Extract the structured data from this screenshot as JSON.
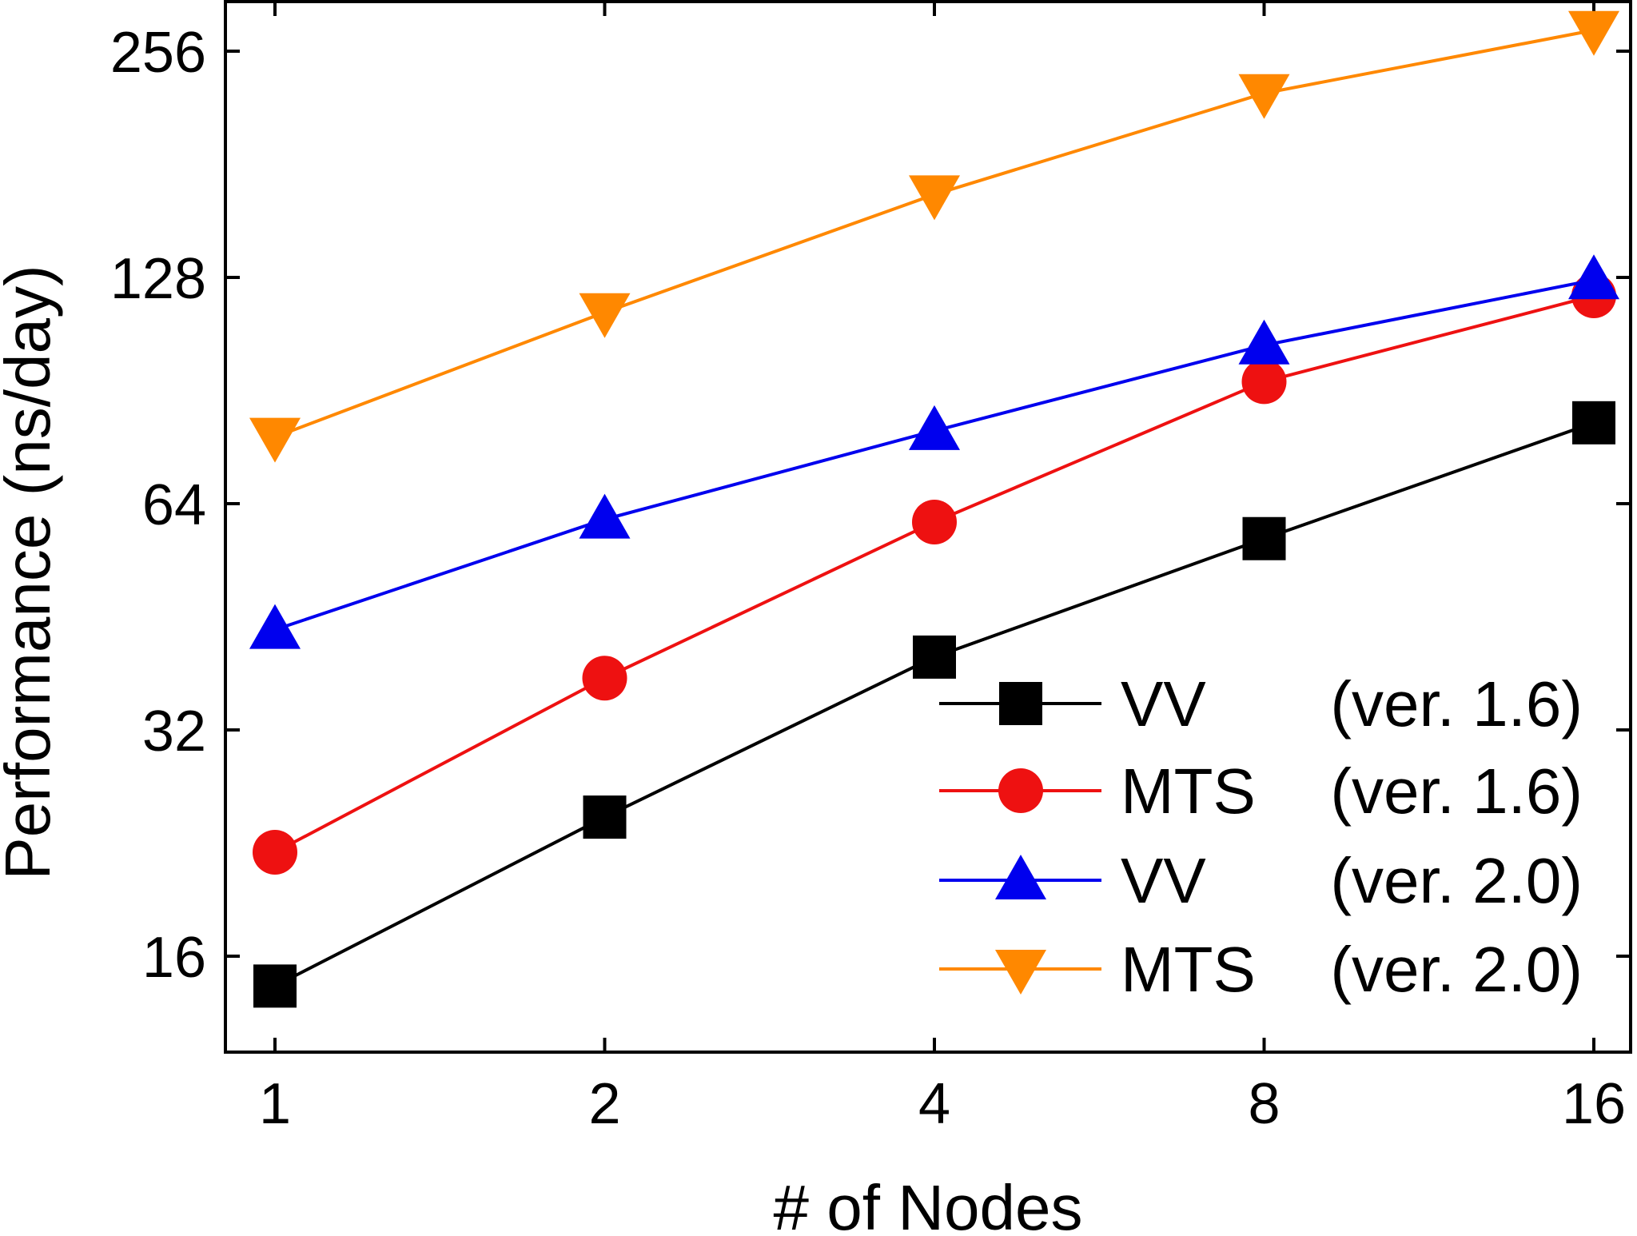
{
  "chart_data": {
    "type": "line",
    "xlabel": "# of Nodes",
    "ylabel": "Performance (ns/day)",
    "x_scale": "log2",
    "y_scale": "log2",
    "x": [
      1,
      2,
      4,
      8,
      16
    ],
    "x_ticks": [
      "1",
      "2",
      "4",
      "8",
      "16"
    ],
    "y_ticks": [
      16,
      32,
      64,
      128,
      256
    ],
    "y_tick_labels": [
      "16",
      "32",
      "64",
      "128",
      "256"
    ],
    "ylim": [
      13,
      280
    ],
    "grid": false,
    "legend_position": "bottom-right",
    "series": [
      {
        "name": "VV",
        "version": "(ver. 1.6)",
        "color": "#000000",
        "marker": "square",
        "values": [
          14.6,
          24.5,
          40.0,
          57.5,
          82.0
        ]
      },
      {
        "name": "MTS",
        "version": "(ver. 1.6)",
        "color": "#ee1111",
        "marker": "circle",
        "values": [
          22.0,
          37.5,
          60.5,
          93.0,
          121.0
        ]
      },
      {
        "name": "VV",
        "version": "(ver. 2.0)",
        "color": "#0000ee",
        "marker": "triangle-up",
        "values": [
          43.5,
          61.0,
          80.0,
          104.0,
          127.0
        ]
      },
      {
        "name": "MTS",
        "version": "(ver. 2.0)",
        "color": "#ff8800",
        "marker": "triangle-down",
        "values": [
          78.5,
          115.0,
          165.0,
          225.0,
          273.0
        ]
      }
    ]
  }
}
